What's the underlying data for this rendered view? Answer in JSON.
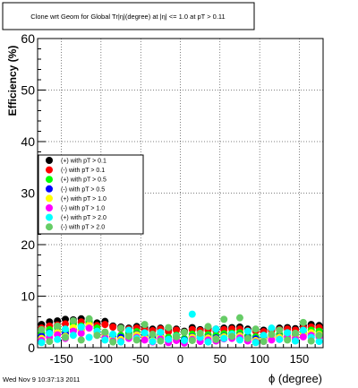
{
  "chart_data": {
    "type": "scatter",
    "title": "Clone wrt Geom for Global Tr|η|(degree) at |η| <= 1.0 at pT > 0.11",
    "xlabel": "ϕ (degree)",
    "ylabel": "Efficiency (%)",
    "xlim": [
      -180,
      180
    ],
    "ylim": [
      0,
      60
    ],
    "xticks": [
      -150,
      -100,
      -50,
      0,
      50,
      100,
      150
    ],
    "yticks": [
      0,
      10,
      20,
      30,
      40,
      50,
      60
    ],
    "grid": true,
    "legend_position": "middle-left",
    "timestamp": "Wed Nov  9 10:37:13 2011",
    "series": [
      {
        "name": "(+) with pT > 0.1",
        "color": "#000000",
        "x": [
          -175,
          -165,
          -155,
          -145,
          -135,
          -125,
          -115,
          -105,
          -95,
          -85,
          -75,
          -65,
          -55,
          -45,
          -35,
          -25,
          -15,
          -5,
          5,
          15,
          25,
          35,
          45,
          55,
          65,
          75,
          85,
          95,
          105,
          115,
          125,
          135,
          145,
          155,
          165,
          175
        ],
        "y": [
          4.5,
          5.0,
          5.2,
          5.5,
          5.4,
          5.6,
          5.0,
          4.8,
          5.1,
          4.2,
          4.0,
          3.8,
          4.1,
          3.9,
          3.6,
          3.8,
          3.4,
          3.6,
          3.2,
          3.9,
          3.5,
          3.7,
          3.6,
          3.8,
          3.9,
          4.0,
          3.6,
          3.5,
          3.4,
          3.6,
          3.8,
          3.9,
          3.7,
          4.2,
          4.5,
          4.3
        ]
      },
      {
        "name": "(-) with pT > 0.1",
        "color": "#ff0000",
        "x": [
          -175,
          -165,
          -155,
          -145,
          -135,
          -125,
          -115,
          -105,
          -95,
          -85,
          -75,
          -65,
          -55,
          -45,
          -35,
          -25,
          -15,
          -5,
          5,
          15,
          25,
          35,
          45,
          55,
          65,
          75,
          85,
          95,
          105,
          115,
          125,
          135,
          145,
          155,
          165,
          175
        ],
        "y": [
          3.8,
          4.2,
          4.4,
          4.6,
          4.9,
          5.0,
          4.7,
          4.3,
          4.5,
          4.0,
          3.7,
          3.6,
          3.8,
          3.5,
          3.3,
          3.6,
          3.1,
          3.4,
          3.0,
          3.5,
          3.3,
          3.4,
          3.3,
          3.5,
          3.6,
          3.6,
          3.3,
          3.2,
          3.1,
          3.3,
          3.5,
          3.6,
          3.4,
          3.8,
          4.0,
          3.9
        ]
      },
      {
        "name": "(+) with pT > 0.5",
        "color": "#00ff00",
        "x": [
          -175,
          -165,
          -155,
          -145,
          -135,
          -125,
          -115,
          -105,
          -95,
          -85,
          -75,
          -65,
          -55,
          -45,
          -35,
          -25,
          -15,
          -5,
          5,
          15,
          25,
          35,
          45,
          55,
          65,
          75,
          85,
          95,
          105,
          115,
          125,
          135,
          145,
          155,
          165,
          175
        ],
        "y": [
          2.8,
          3.5,
          3.9,
          3.2,
          4.6,
          4.2,
          5.2,
          3.8,
          3.0,
          2.5,
          2.4,
          2.9,
          3.1,
          2.6,
          2.2,
          2.8,
          2.0,
          2.4,
          1.8,
          2.6,
          2.2,
          2.5,
          2.4,
          2.7,
          2.8,
          2.9,
          2.3,
          2.1,
          2.2,
          2.5,
          2.6,
          2.9,
          2.7,
          3.1,
          3.4,
          3.2
        ]
      },
      {
        "name": "(-) with pT > 0.5",
        "color": "#0000ff",
        "x": [
          -175,
          -165,
          -155,
          -145,
          -135,
          -125,
          -115,
          -105,
          -95,
          -85,
          -75,
          -65,
          -55,
          -45,
          -35,
          -25,
          -15,
          -5,
          5,
          15,
          25,
          35,
          45,
          55,
          65,
          75,
          85,
          95,
          105,
          115,
          125,
          135,
          145,
          155,
          165,
          175
        ],
        "y": [
          2.2,
          2.9,
          3.1,
          2.7,
          3.6,
          3.4,
          4.1,
          3.0,
          2.6,
          2.1,
          2.0,
          2.3,
          2.6,
          2.2,
          1.8,
          2.3,
          1.6,
          2.0,
          1.5,
          2.1,
          1.8,
          2.0,
          1.9,
          2.2,
          2.3,
          2.4,
          1.9,
          1.7,
          1.8,
          2.0,
          2.1,
          2.4,
          2.2,
          2.6,
          2.8,
          2.6
        ]
      },
      {
        "name": "(+) with pT > 1.0",
        "color": "#ffff00",
        "x": [
          -175,
          -165,
          -155,
          -145,
          -135,
          -125,
          -115,
          -105,
          -95,
          -85,
          -75,
          -65,
          -55,
          -45,
          -35,
          -25,
          -15,
          -5,
          5,
          15,
          25,
          35,
          45,
          55,
          65,
          75,
          85,
          95,
          105,
          115,
          125,
          135,
          145,
          155,
          165,
          175
        ],
        "y": [
          1.8,
          2.5,
          3.0,
          2.2,
          3.9,
          3.3,
          4.4,
          2.9,
          2.3,
          1.7,
          1.6,
          2.2,
          2.5,
          1.9,
          1.4,
          2.1,
          1.3,
          1.8,
          1.2,
          2.0,
          1.5,
          1.9,
          1.7,
          2.1,
          2.2,
          2.3,
          1.6,
          1.4,
          1.5,
          1.9,
          2.0,
          2.4,
          2.1,
          2.6,
          2.9,
          2.6
        ]
      },
      {
        "name": "(-) with pT > 1.0",
        "color": "#ff00ff",
        "x": [
          -175,
          -165,
          -155,
          -145,
          -135,
          -125,
          -115,
          -105,
          -95,
          -85,
          -75,
          -65,
          -55,
          -45,
          -35,
          -25,
          -15,
          -5,
          5,
          15,
          25,
          35,
          45,
          55,
          65,
          75,
          85,
          95,
          105,
          115,
          125,
          135,
          145,
          155,
          165,
          175
        ],
        "y": [
          1.4,
          2.0,
          2.5,
          1.8,
          3.2,
          2.8,
          3.8,
          2.4,
          1.9,
          1.3,
          1.2,
          1.8,
          2.0,
          1.5,
          1.1,
          1.7,
          1.0,
          1.4,
          0.9,
          1.6,
          1.2,
          1.5,
          1.3,
          1.7,
          1.8,
          1.9,
          1.3,
          1.1,
          1.2,
          1.5,
          1.6,
          2.0,
          1.7,
          2.1,
          2.4,
          2.1
        ]
      },
      {
        "name": "(+) with pT > 2.0",
        "color": "#00ffff",
        "x": [
          -175,
          -165,
          -155,
          -145,
          -135,
          -125,
          -115,
          -105,
          -95,
          -85,
          -75,
          -65,
          -55,
          -45,
          -35,
          -25,
          -15,
          -5,
          5,
          15,
          25,
          35,
          45,
          55,
          65,
          75,
          85,
          95,
          105,
          115,
          125,
          135,
          145,
          155,
          165,
          175
        ],
        "y": [
          1.0,
          2.8,
          1.6,
          3.6,
          2.4,
          4.0,
          2.0,
          3.2,
          1.5,
          2.6,
          1.1,
          3.4,
          1.8,
          2.9,
          1.2,
          3.0,
          1.6,
          2.2,
          1.4,
          6.5,
          2.0,
          1.1,
          3.6,
          1.8,
          2.6,
          1.5,
          3.2,
          1.0,
          2.4,
          3.8,
          1.6,
          2.9,
          1.3,
          3.4,
          2.0,
          1.2
        ]
      },
      {
        "name": "(-) with pT > 2.0",
        "color": "#66cc66",
        "x": [
          -175,
          -165,
          -155,
          -145,
          -135,
          -125,
          -115,
          -105,
          -95,
          -85,
          -75,
          -65,
          -55,
          -45,
          -35,
          -25,
          -15,
          -5,
          5,
          15,
          25,
          35,
          45,
          55,
          65,
          75,
          85,
          95,
          105,
          115,
          125,
          135,
          145,
          155,
          165,
          175
        ],
        "y": [
          3.5,
          1.2,
          4.2,
          2.0,
          5.2,
          1.5,
          5.6,
          2.4,
          3.0,
          1.1,
          3.8,
          2.2,
          1.5,
          4.5,
          2.6,
          1.3,
          3.9,
          2.1,
          3.0,
          1.4,
          2.8,
          4.1,
          1.6,
          5.5,
          2.2,
          5.8,
          1.8,
          3.6,
          1.2,
          2.6,
          3.4,
          1.5,
          2.8,
          4.9,
          1.3,
          2.4
        ]
      }
    ]
  }
}
